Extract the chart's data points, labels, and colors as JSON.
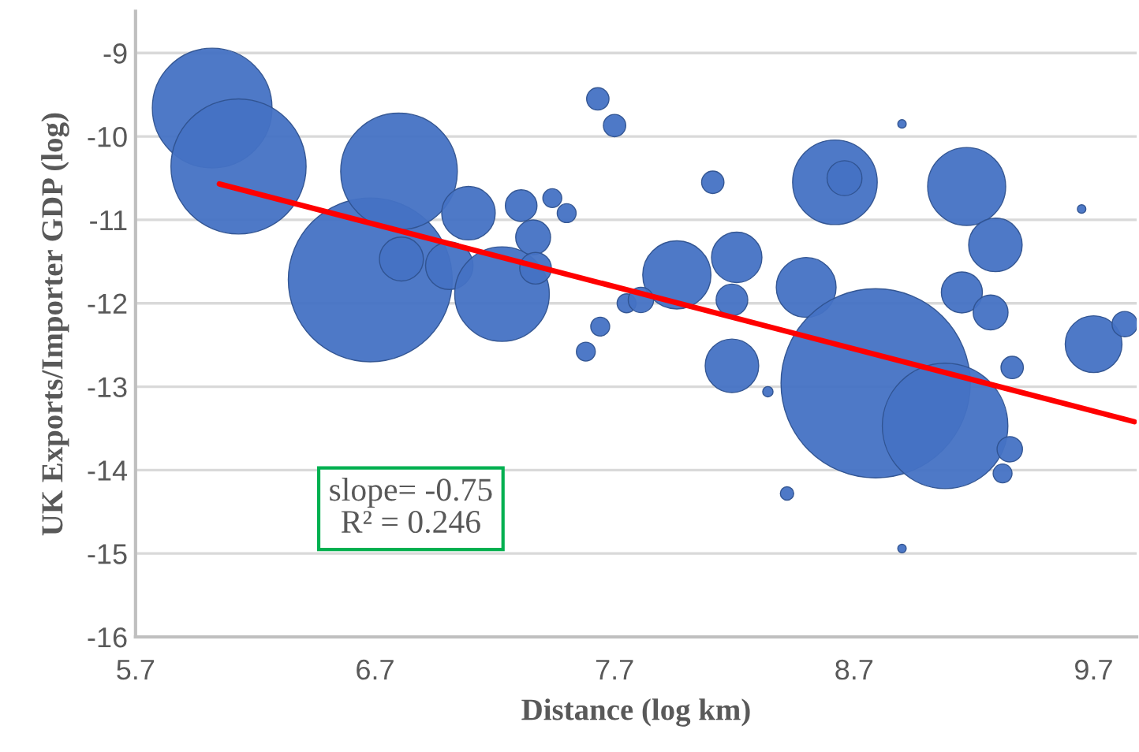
{
  "chart_data": {
    "type": "bubble",
    "xlabel": "Distance (log km)",
    "ylabel": "UK Exports/Importer GDP (log)",
    "xlim": [
      5.7,
      9.88
    ],
    "xticks": [
      5.7,
      6.7,
      7.7,
      8.7,
      9.7
    ],
    "ylim": [
      -16,
      -8.5
    ],
    "yticks": [
      -16,
      -15,
      -14,
      -13,
      -12,
      -11,
      -10,
      -9
    ],
    "grid": "y",
    "legend": false,
    "annotations": [
      "slope= -0.75\nR² = 0.246"
    ],
    "series": [
      {
        "color": "#4472c4",
        "x": [
          6.02,
          6.13,
          6.68,
          6.8,
          6.81,
          7.01,
          7.09,
          7.23,
          7.31,
          7.36,
          7.44,
          7.37,
          7.5,
          7.63,
          7.7,
          8.11,
          7.96,
          8.21,
          8.19,
          8.19,
          8.5,
          8.62,
          8.66,
          9.17,
          9.29,
          9.15,
          9.27,
          8.79,
          9.08,
          9.7,
          9.83,
          9.36,
          9.35,
          9.32,
          8.42,
          7.64,
          7.58,
          7.75,
          7.81,
          8.9,
          8.34,
          8.9,
          9.65
        ],
        "values": [
          -9.66,
          -10.36,
          -11.72,
          -10.42,
          -11.47,
          -11.55,
          -10.92,
          -11.89,
          -10.83,
          -11.21,
          -10.74,
          -11.58,
          -10.92,
          -9.55,
          -9.87,
          -10.55,
          -11.66,
          -11.45,
          -11.96,
          -12.75,
          -11.81,
          -10.55,
          -10.5,
          -10.6,
          -11.3,
          -11.87,
          -12.11,
          -12.96,
          -13.47,
          -12.49,
          -12.25,
          -12.77,
          -13.75,
          -14.04,
          -14.28,
          -12.28,
          -12.58,
          -12.0,
          -11.96,
          -9.85,
          -13.06,
          -14.94,
          -10.87
        ],
        "sizes": [
          0.4,
          0.51,
          0.75,
          0.38,
          0.054,
          0.063,
          0.08,
          0.25,
          0.028,
          0.034,
          0.01,
          0.028,
          0.01,
          0.014,
          0.014,
          0.014,
          0.13,
          0.071,
          0.028,
          0.08,
          0.1,
          0.2,
          0.034,
          0.17,
          0.08,
          0.047,
          0.034,
          1,
          0.44,
          0.09,
          0.018,
          0.014,
          0.018,
          0.01,
          0.005,
          0.01,
          0.01,
          0.01,
          0.018,
          0.002,
          0.003,
          0.002,
          0.002
        ]
      },
      {
        "type": "line",
        "color": "#ff0000",
        "x": [
          6.05,
          9.87
        ],
        "values": [
          -10.57,
          -13.42
        ]
      }
    ]
  }
}
